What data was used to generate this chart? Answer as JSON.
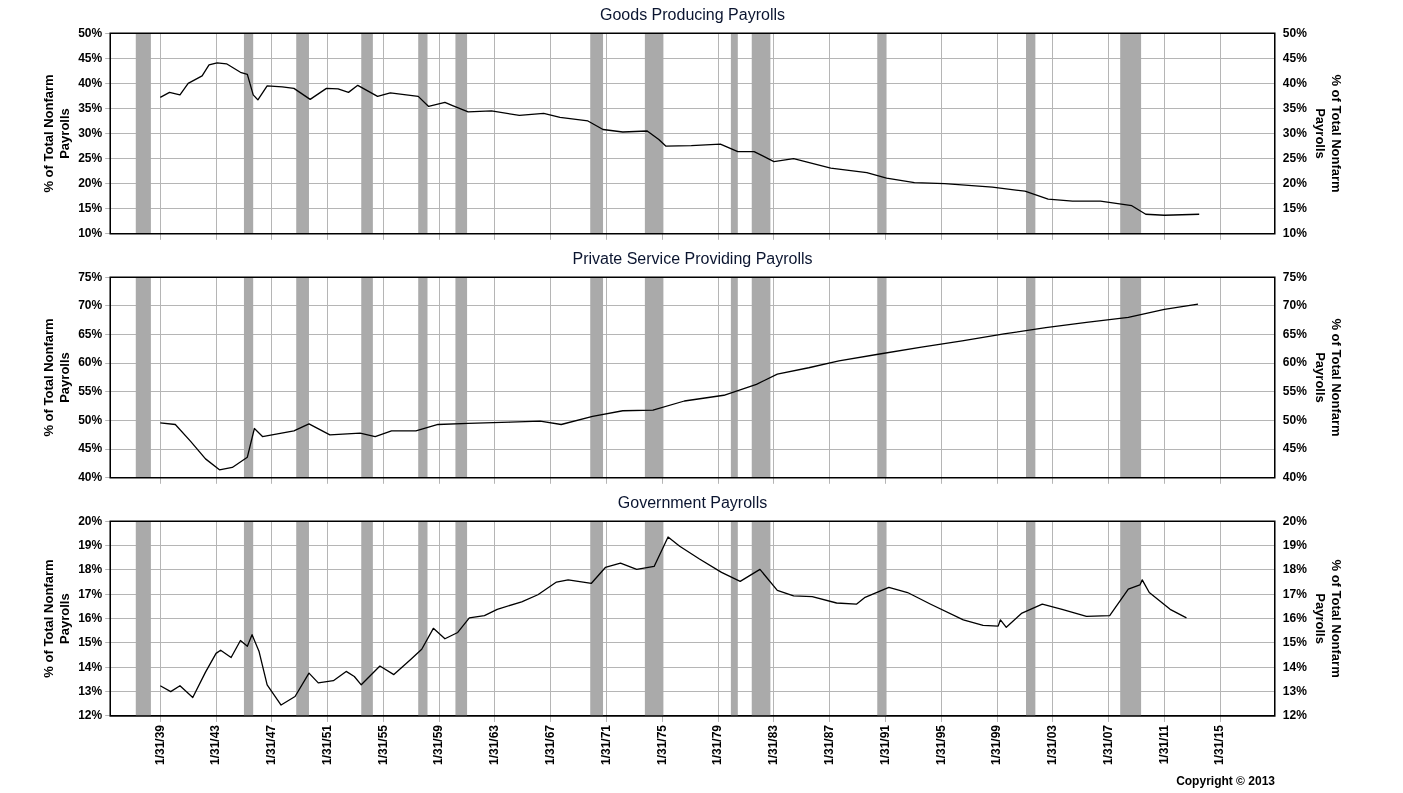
{
  "chart_data": [
    {
      "type": "line",
      "title": "Goods Producing Payrolls",
      "ylabel": "% of Total Nonfarm Payrolls",
      "y2label": "% of Total Nonfarm Payrolls",
      "x": [
        "1939-02",
        "1939-10",
        "1940-07",
        "1941-02",
        "1942-02",
        "1942-08",
        "1943-03",
        "1943-11",
        "1944-11",
        "1945-05",
        "1945-10",
        "1946-02",
        "1946-10",
        "1947-11",
        "1948-09",
        "1949-11",
        "1951-01",
        "1951-11",
        "1952-08",
        "1953-04",
        "1954-09",
        "1955-08",
        "1957-08",
        "1958-05",
        "1959-07",
        "1960-01",
        "1961-03",
        "1962-11",
        "1964-11",
        "1966-08",
        "1967-10",
        "1969-10",
        "1970-11",
        "1972-04",
        "1974-01",
        "1974-11",
        "1975-05",
        "1977-03",
        "1979-04",
        "1980-07",
        "1981-09",
        "1983-02",
        "1984-07",
        "1987-03",
        "1989-10",
        "1991-03",
        "1993-03",
        "1995-05",
        "1998-10",
        "2001-02",
        "2002-10",
        "2004-07",
        "2006-07",
        "2008-10",
        "2009-10",
        "2011-02",
        "2013-08"
      ],
      "series": [
        {
          "color": "#000000",
          "values": [
            37.2,
            38.2,
            37.7,
            40.0,
            41.5,
            43.7,
            44.1,
            43.9,
            42.2,
            41.8,
            37.7,
            36.7,
            39.5,
            39.3,
            39.0,
            36.8,
            39.0,
            38.9,
            38.2,
            39.6,
            37.4,
            38.1,
            37.4,
            35.4,
            36.2,
            35.6,
            34.3,
            34.5,
            33.6,
            34.0,
            33.2,
            32.5,
            30.8,
            30.3,
            30.5,
            28.8,
            27.5,
            27.6,
            27.9,
            26.4,
            26.4,
            24.4,
            25.0,
            23.1,
            22.2,
            21.1,
            20.2,
            20.0,
            19.3,
            18.5,
            16.9,
            16.5,
            16.5,
            15.6,
            13.9,
            13.7,
            13.9
          ]
        }
      ],
      "xlim": [
        "1935-07",
        "2019-01"
      ],
      "xticks": [
        {
          "value": "1939-01-31",
          "label": null
        },
        {
          "value": "1943-01-31",
          "label": null
        },
        {
          "value": "1947-01-31",
          "label": null
        },
        {
          "value": "1951-01-31",
          "label": null
        },
        {
          "value": "1955-01-31",
          "label": null
        },
        {
          "value": "1959-01-31",
          "label": null
        },
        {
          "value": "1963-01-31",
          "label": null
        },
        {
          "value": "1967-01-31",
          "label": null
        },
        {
          "value": "1971-01-31",
          "label": null
        },
        {
          "value": "1975-01-31",
          "label": null
        },
        {
          "value": "1979-01-31",
          "label": null
        },
        {
          "value": "1983-01-31",
          "label": null
        },
        {
          "value": "1987-01-31",
          "label": null
        },
        {
          "value": "1991-01-31",
          "label": null
        },
        {
          "value": "1995-01-31",
          "label": null
        },
        {
          "value": "1999-01-31",
          "label": null
        },
        {
          "value": "2003-01-31",
          "label": null
        },
        {
          "value": "2007-01-31",
          "label": null
        },
        {
          "value": "2011-01-31",
          "label": null
        },
        {
          "value": "2015-01-31",
          "label": null
        }
      ],
      "ylim": [
        10,
        50
      ],
      "yticks": [
        {
          "value": 10,
          "label": "10%"
        },
        {
          "value": 15,
          "label": "15%"
        },
        {
          "value": 20,
          "label": "20%"
        },
        {
          "value": 25,
          "label": "25%"
        },
        {
          "value": 30,
          "label": "30%"
        },
        {
          "value": 35,
          "label": "35%"
        },
        {
          "value": 40,
          "label": "40%"
        },
        {
          "value": 45,
          "label": "45%"
        },
        {
          "value": 50,
          "label": "50%"
        }
      ],
      "y2lim": [
        10,
        50
      ],
      "y2ticks": [
        {
          "value": 10,
          "label": "10%"
        },
        {
          "value": 15,
          "label": "15%"
        },
        {
          "value": 20,
          "label": "20%"
        },
        {
          "value": 25,
          "label": "25%"
        },
        {
          "value": 30,
          "label": "30%"
        },
        {
          "value": 35,
          "label": "35%"
        },
        {
          "value": 40,
          "label": "40%"
        },
        {
          "value": 45,
          "label": "45%"
        },
        {
          "value": 50,
          "label": "50%"
        }
      ],
      "bands": [
        {
          "axis": "x",
          "from": "1937-05",
          "to": "1938-06",
          "color": "#aaaaaa"
        },
        {
          "axis": "x",
          "from": "1945-02",
          "to": "1945-10",
          "color": "#aaaaaa"
        },
        {
          "axis": "x",
          "from": "1948-11",
          "to": "1949-10",
          "color": "#aaaaaa"
        },
        {
          "axis": "x",
          "from": "1953-07",
          "to": "1954-05",
          "color": "#aaaaaa"
        },
        {
          "axis": "x",
          "from": "1957-08",
          "to": "1958-04",
          "color": "#aaaaaa"
        },
        {
          "axis": "x",
          "from": "1960-04",
          "to": "1961-02",
          "color": "#aaaaaa"
        },
        {
          "axis": "x",
          "from": "1969-12",
          "to": "1970-11",
          "color": "#aaaaaa"
        },
        {
          "axis": "x",
          "from": "1973-11",
          "to": "1975-03",
          "color": "#aaaaaa"
        },
        {
          "axis": "x",
          "from": "1980-01",
          "to": "1980-07",
          "color": "#aaaaaa"
        },
        {
          "axis": "x",
          "from": "1981-07",
          "to": "1982-11",
          "color": "#aaaaaa"
        },
        {
          "axis": "x",
          "from": "1990-07",
          "to": "1991-03",
          "color": "#aaaaaa"
        },
        {
          "axis": "x",
          "from": "2001-03",
          "to": "2001-11",
          "color": "#aaaaaa"
        },
        {
          "axis": "x",
          "from": "2007-12",
          "to": "2009-06",
          "color": "#aaaaaa"
        }
      ],
      "grid": true,
      "legend": false,
      "marker": "none",
      "tick_labels": "y"
    },
    {
      "type": "line",
      "title": "Private Service Providing Payrolls",
      "ylabel": "% of Total Nonfarm Payrolls",
      "y2label": "% of Total Nonfarm Payrolls",
      "x": [
        "1939-02",
        "1940-03",
        "1941-04",
        "1942-05",
        "1943-05",
        "1944-04",
        "1945-05",
        "1945-11",
        "1946-06",
        "1948-09",
        "1949-10",
        "1951-04",
        "1953-06",
        "1954-07",
        "1955-09",
        "1957-06",
        "1959-01",
        "1961-03",
        "1964-03",
        "1966-05",
        "1967-11",
        "1970-02",
        "1972-04",
        "1974-06",
        "1976-09",
        "1979-07",
        "1981-11",
        "1983-05",
        "1985-08",
        "1987-10",
        "1990-09",
        "1993-09",
        "1996-08",
        "1999-08",
        "2002-08",
        "2005-07",
        "2008-07",
        "2011-02",
        "2013-07"
      ],
      "series": [
        {
          "color": "#000000",
          "values": [
            49.6,
            49.3,
            46.4,
            43.3,
            41.4,
            41.8,
            43.6,
            48.6,
            47.2,
            48.2,
            49.4,
            47.5,
            47.8,
            47.2,
            48.2,
            48.2,
            49.3,
            49.5,
            49.7,
            49.9,
            49.3,
            50.7,
            51.7,
            51.8,
            53.4,
            54.4,
            56.3,
            58.1,
            59.2,
            60.4,
            61.6,
            62.8,
            63.9,
            65.1,
            66.2,
            67.1,
            68.0,
            69.4,
            70.3
          ]
        }
      ],
      "xlim": [
        "1935-07",
        "2019-01"
      ],
      "xticks": [
        {
          "value": "1939-01-31",
          "label": null
        },
        {
          "value": "1943-01-31",
          "label": null
        },
        {
          "value": "1947-01-31",
          "label": null
        },
        {
          "value": "1951-01-31",
          "label": null
        },
        {
          "value": "1955-01-31",
          "label": null
        },
        {
          "value": "1959-01-31",
          "label": null
        },
        {
          "value": "1963-01-31",
          "label": null
        },
        {
          "value": "1967-01-31",
          "label": null
        },
        {
          "value": "1971-01-31",
          "label": null
        },
        {
          "value": "1975-01-31",
          "label": null
        },
        {
          "value": "1979-01-31",
          "label": null
        },
        {
          "value": "1983-01-31",
          "label": null
        },
        {
          "value": "1987-01-31",
          "label": null
        },
        {
          "value": "1991-01-31",
          "label": null
        },
        {
          "value": "1995-01-31",
          "label": null
        },
        {
          "value": "1999-01-31",
          "label": null
        },
        {
          "value": "2003-01-31",
          "label": null
        },
        {
          "value": "2007-01-31",
          "label": null
        },
        {
          "value": "2011-01-31",
          "label": null
        },
        {
          "value": "2015-01-31",
          "label": null
        }
      ],
      "ylim": [
        40,
        75
      ],
      "yticks": [
        {
          "value": 40,
          "label": "40%"
        },
        {
          "value": 45,
          "label": "45%"
        },
        {
          "value": 50,
          "label": "50%"
        },
        {
          "value": 55,
          "label": "55%"
        },
        {
          "value": 60,
          "label": "60%"
        },
        {
          "value": 65,
          "label": "65%"
        },
        {
          "value": 70,
          "label": "70%"
        },
        {
          "value": 75,
          "label": "75%"
        }
      ],
      "y2lim": [
        40,
        75
      ],
      "y2ticks": [
        {
          "value": 40,
          "label": "40%"
        },
        {
          "value": 45,
          "label": "45%"
        },
        {
          "value": 50,
          "label": "50%"
        },
        {
          "value": 55,
          "label": "55%"
        },
        {
          "value": 60,
          "label": "60%"
        },
        {
          "value": 65,
          "label": "65%"
        },
        {
          "value": 70,
          "label": "70%"
        },
        {
          "value": 75,
          "label": "75%"
        }
      ],
      "bands": [
        {
          "axis": "x",
          "from": "1937-05",
          "to": "1938-06",
          "color": "#aaaaaa"
        },
        {
          "axis": "x",
          "from": "1945-02",
          "to": "1945-10",
          "color": "#aaaaaa"
        },
        {
          "axis": "x",
          "from": "1948-11",
          "to": "1949-10",
          "color": "#aaaaaa"
        },
        {
          "axis": "x",
          "from": "1953-07",
          "to": "1954-05",
          "color": "#aaaaaa"
        },
        {
          "axis": "x",
          "from": "1957-08",
          "to": "1958-04",
          "color": "#aaaaaa"
        },
        {
          "axis": "x",
          "from": "1960-04",
          "to": "1961-02",
          "color": "#aaaaaa"
        },
        {
          "axis": "x",
          "from": "1969-12",
          "to": "1970-11",
          "color": "#aaaaaa"
        },
        {
          "axis": "x",
          "from": "1973-11",
          "to": "1975-03",
          "color": "#aaaaaa"
        },
        {
          "axis": "x",
          "from": "1980-01",
          "to": "1980-07",
          "color": "#aaaaaa"
        },
        {
          "axis": "x",
          "from": "1981-07",
          "to": "1982-11",
          "color": "#aaaaaa"
        },
        {
          "axis": "x",
          "from": "1990-07",
          "to": "1991-03",
          "color": "#aaaaaa"
        },
        {
          "axis": "x",
          "from": "2001-03",
          "to": "2001-11",
          "color": "#aaaaaa"
        },
        {
          "axis": "x",
          "from": "2007-12",
          "to": "2009-06",
          "color": "#aaaaaa"
        }
      ],
      "grid": true,
      "legend": false,
      "marker": "none",
      "tick_labels": "y"
    },
    {
      "type": "line",
      "title": "Government Payrolls",
      "ylabel": "% of Total Nonfarm Payrolls",
      "y2label": "% of Total Nonfarm Payrolls",
      "x": [
        "1939-02",
        "1939-11",
        "1940-07",
        "1941-06",
        "1942-05",
        "1943-02",
        "1943-06",
        "1944-03",
        "1944-11",
        "1945-05",
        "1945-09",
        "1946-03",
        "1946-10",
        "1947-10",
        "1948-10",
        "1949-10",
        "1950-06",
        "1951-07",
        "1952-06",
        "1953-01",
        "1953-07",
        "1954-11",
        "1955-11",
        "1957-01",
        "1957-11",
        "1958-09",
        "1959-07",
        "1960-06",
        "1961-04",
        "1962-05",
        "1963-04",
        "1965-01",
        "1966-03",
        "1967-07",
        "1968-05",
        "1970-01",
        "1971-01",
        "1972-02",
        "1973-04",
        "1974-07",
        "1975-07",
        "1976-05",
        "1977-10",
        "1979-05",
        "1980-09",
        "1982-02",
        "1983-05",
        "1984-07",
        "1985-11",
        "1987-08",
        "1989-01",
        "1989-08",
        "1991-05",
        "1992-09",
        "1994-05",
        "1996-09",
        "1998-02",
        "1999-03",
        "1999-05",
        "1999-10",
        "2000-11",
        "2002-05",
        "2003-10",
        "2005-07",
        "2007-03",
        "2008-07",
        "2009-05",
        "2009-07",
        "2010-01",
        "2011-07",
        "2012-09"
      ],
      "series": [
        {
          "color": "#000000",
          "values": [
            13.24,
            13.0,
            13.24,
            12.76,
            13.8,
            14.57,
            14.7,
            14.4,
            15.1,
            14.86,
            15.34,
            14.66,
            13.28,
            12.45,
            12.8,
            13.76,
            13.36,
            13.45,
            13.83,
            13.62,
            13.28,
            14.05,
            13.7,
            14.3,
            14.74,
            15.6,
            15.17,
            15.43,
            16.03,
            16.12,
            16.38,
            16.69,
            16.98,
            17.5,
            17.59,
            17.45,
            18.1,
            18.28,
            18.02,
            18.14,
            19.35,
            18.97,
            18.45,
            17.9,
            17.53,
            18.02,
            17.16,
            16.93,
            16.9,
            16.64,
            16.59,
            16.86,
            17.28,
            17.07,
            16.59,
            15.95,
            15.72,
            15.69,
            15.95,
            15.64,
            16.21,
            16.59,
            16.38,
            16.09,
            16.12,
            17.21,
            17.38,
            17.59,
            17.07,
            16.38,
            16.03
          ]
        }
      ],
      "xlim": [
        "1935-07",
        "2019-01"
      ],
      "xticks": [
        {
          "value": "1939-01-31",
          "label": "1/31/39"
        },
        {
          "value": "1943-01-31",
          "label": "1/31/43"
        },
        {
          "value": "1947-01-31",
          "label": "1/31/47"
        },
        {
          "value": "1951-01-31",
          "label": "1/31/51"
        },
        {
          "value": "1955-01-31",
          "label": "1/31/55"
        },
        {
          "value": "1959-01-31",
          "label": "1/31/59"
        },
        {
          "value": "1963-01-31",
          "label": "1/31/63"
        },
        {
          "value": "1967-01-31",
          "label": "1/31/67"
        },
        {
          "value": "1971-01-31",
          "label": "1/31/71"
        },
        {
          "value": "1975-01-31",
          "label": "1/31/75"
        },
        {
          "value": "1979-01-31",
          "label": "1/31/79"
        },
        {
          "value": "1983-01-31",
          "label": "1/31/83"
        },
        {
          "value": "1987-01-31",
          "label": "1/31/87"
        },
        {
          "value": "1991-01-31",
          "label": "1/31/91"
        },
        {
          "value": "1995-01-31",
          "label": "1/31/95"
        },
        {
          "value": "1999-01-31",
          "label": "1/31/99"
        },
        {
          "value": "2003-01-31",
          "label": "1/31/03"
        },
        {
          "value": "2007-01-31",
          "label": "1/31/07"
        },
        {
          "value": "2011-01-31",
          "label": "1/31/11"
        },
        {
          "value": "2015-01-31",
          "label": "1/31/15"
        }
      ],
      "ylim": [
        12,
        20
      ],
      "yticks": [
        {
          "value": 12,
          "label": "12%"
        },
        {
          "value": 13,
          "label": "13%"
        },
        {
          "value": 14,
          "label": "14%"
        },
        {
          "value": 15,
          "label": "15%"
        },
        {
          "value": 16,
          "label": "16%"
        },
        {
          "value": 17,
          "label": "17%"
        },
        {
          "value": 18,
          "label": "18%"
        },
        {
          "value": 19,
          "label": "19%"
        },
        {
          "value": 20,
          "label": "20%"
        }
      ],
      "y2lim": [
        12,
        20
      ],
      "y2ticks": [
        {
          "value": 12,
          "label": "12%"
        },
        {
          "value": 13,
          "label": "13%"
        },
        {
          "value": 14,
          "label": "14%"
        },
        {
          "value": 15,
          "label": "15%"
        },
        {
          "value": 16,
          "label": "16%"
        },
        {
          "value": 17,
          "label": "17%"
        },
        {
          "value": 18,
          "label": "18%"
        },
        {
          "value": 19,
          "label": "19%"
        },
        {
          "value": 20,
          "label": "20%"
        }
      ],
      "bands": [
        {
          "axis": "x",
          "from": "1937-05",
          "to": "1938-06",
          "color": "#aaaaaa"
        },
        {
          "axis": "x",
          "from": "1945-02",
          "to": "1945-10",
          "color": "#aaaaaa"
        },
        {
          "axis": "x",
          "from": "1948-11",
          "to": "1949-10",
          "color": "#aaaaaa"
        },
        {
          "axis": "x",
          "from": "1953-07",
          "to": "1954-05",
          "color": "#aaaaaa"
        },
        {
          "axis": "x",
          "from": "1957-08",
          "to": "1958-04",
          "color": "#aaaaaa"
        },
        {
          "axis": "x",
          "from": "1960-04",
          "to": "1961-02",
          "color": "#aaaaaa"
        },
        {
          "axis": "x",
          "from": "1969-12",
          "to": "1970-11",
          "color": "#aaaaaa"
        },
        {
          "axis": "x",
          "from": "1973-11",
          "to": "1975-03",
          "color": "#aaaaaa"
        },
        {
          "axis": "x",
          "from": "1980-01",
          "to": "1980-07",
          "color": "#aaaaaa"
        },
        {
          "axis": "x",
          "from": "1981-07",
          "to": "1982-11",
          "color": "#aaaaaa"
        },
        {
          "axis": "x",
          "from": "1990-07",
          "to": "1991-03",
          "color": "#aaaaaa"
        },
        {
          "axis": "x",
          "from": "2001-03",
          "to": "2001-11",
          "color": "#aaaaaa"
        },
        {
          "axis": "x",
          "from": "2007-12",
          "to": "2009-06",
          "color": "#aaaaaa"
        }
      ],
      "annotations": [
        "Copyright © 2013"
      ],
      "grid": true,
      "legend": false,
      "marker": "none"
    }
  ]
}
